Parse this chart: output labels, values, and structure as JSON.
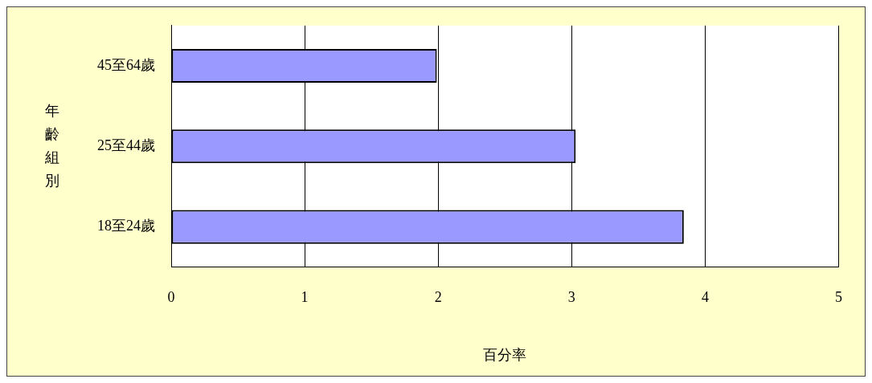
{
  "chart_data": {
    "type": "bar",
    "orientation": "horizontal",
    "xlabel": "百分率",
    "ylabel": "年齡組別",
    "categories": [
      "45至64歲",
      "25至44歲",
      "18至24歲"
    ],
    "series": [
      {
        "color": "#9999ff",
        "values": [
          1.99,
          3.03,
          3.84
        ]
      }
    ],
    "xlim": [
      0,
      5
    ],
    "xticks": [
      0,
      1,
      2,
      3,
      4,
      5
    ],
    "grid": "x",
    "legend": false
  }
}
